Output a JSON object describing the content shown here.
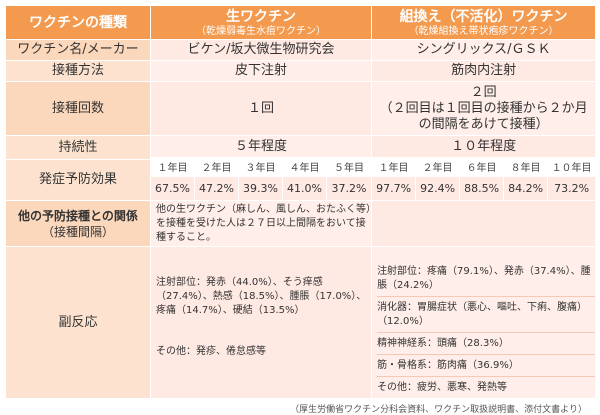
{
  "header": {
    "corner": "ワクチンの種類",
    "live": {
      "title": "生ワクチン",
      "subtitle": "（乾燥弱毒生水痘ワクチン）"
    },
    "recomb": {
      "title": "組換え（不活化）ワクチン",
      "subtitle": "（乾燥組換え帯状疱疹ワクチン）"
    }
  },
  "rows": {
    "maker": {
      "label": "ワクチン名/メーカー",
      "live": "ビケン/坂大微生物研究会",
      "recomb": "シングリックス/ＧＳＫ"
    },
    "method": {
      "label": "接種方法",
      "live": "皮下注射",
      "recomb": "筋肉内注射"
    },
    "count": {
      "label": "接種回数",
      "live": "１回",
      "recomb_line1": "２回",
      "recomb_line2": "（２回目は１回目の接種から２か月の間隔をあけて接種）"
    },
    "duration": {
      "label": "持続性",
      "live": "５年程度",
      "recomb": "１０年程度"
    },
    "efficacy": {
      "label": "発症予防効果",
      "live_years": [
        "１年目",
        "２年目",
        "３年目",
        "４年目",
        "５年目"
      ],
      "live_values": [
        "67.5%",
        "47.2%",
        "39.3%",
        "41.0%",
        "37.2%"
      ],
      "recomb_years": [
        "１年目",
        "２年目",
        "６年目",
        "８年目",
        "１０年目"
      ],
      "recomb_values": [
        "97.7%",
        "92.4%",
        "88.5%",
        "84.2%",
        "73.2%"
      ]
    },
    "interval": {
      "label_line1": "他の予防接種との関係",
      "label_line2": "（接種間隔）",
      "live": "他の生ワクチン（麻しん、風しん、おたふく等）を接種を受けた人は２７日以上間隔をおいて接種すること。",
      "recomb": ""
    },
    "side_effects": {
      "label": "副反応",
      "live_main": "注射部位：発赤（44.0%）、そう痒感（27.4%）、熱感（18.5%）、腫脹（17.0%）、疼痛（14.7%）、硬結（13.5%）",
      "live_other": "その他：発疹、倦怠感等",
      "recomb_injection": "注射部位：疼痛（79.1%）、発赤（37.4%）、腫脹（24.2%）",
      "recomb_digestive": "消化器：胃腸症状（悪心、嘔吐、下痢、腹痛）（12.0%）",
      "recomb_nervous": "精神神経系：頭痛（28.3%）",
      "recomb_muscle": "筋・骨格系：筋肉痛（36.9%）",
      "recomb_other": "その他：疲労、悪寒、発熱等"
    }
  },
  "footer": "（厚生労働省ワクチン分科会資料、ワクチン取扱説明書、添付文書より）"
}
